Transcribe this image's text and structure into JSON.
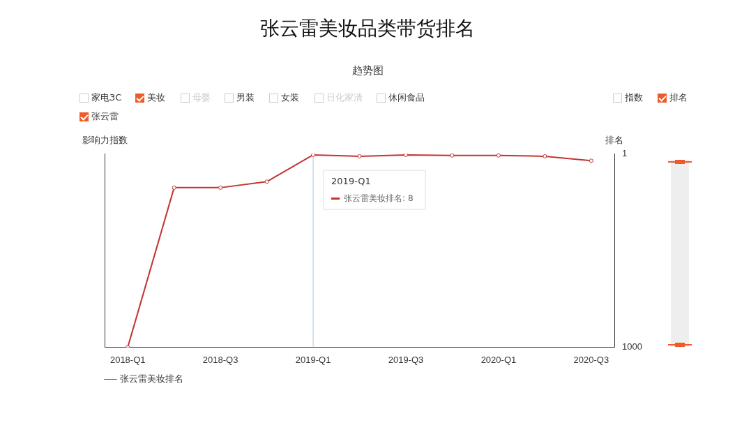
{
  "chart_data": {
    "type": "line",
    "title": "张云雷美妆品类带货排名",
    "subtitle": "趋势图",
    "categories": [
      "2018-Q1",
      null,
      "2018-Q3",
      null,
      "2019-Q1",
      null,
      "2019-Q3",
      null,
      "2020-Q1",
      null,
      "2020-Q3"
    ],
    "series": [
      {
        "name": "张云雷美妆排名",
        "color": "#c23531",
        "axis": "y2",
        "values": [
          1000,
          177,
          177,
          146,
          8,
          15,
          8,
          11,
          11,
          15,
          38
        ]
      }
    ],
    "ylabel": "影响力指数",
    "y2label": "排名",
    "y2lim": [
      1000,
      1
    ],
    "y2ticks": [
      1,
      1000
    ],
    "ref_lines": [
      {
        "axis": "x",
        "value": "2019-Q1",
        "color": "#a7c4e0"
      }
    ],
    "annotations": [
      "家电3C",
      "美妆",
      "母婴",
      "男装",
      "女装",
      "日化家清",
      "休闲食品",
      "指数",
      "排名",
      "张云雷",
      "2019-Q1",
      "张云雷美妆排名: 8"
    ],
    "legend": "bottom left",
    "marker": "circle",
    "line_style": "solid",
    "grid": false
  }
}
